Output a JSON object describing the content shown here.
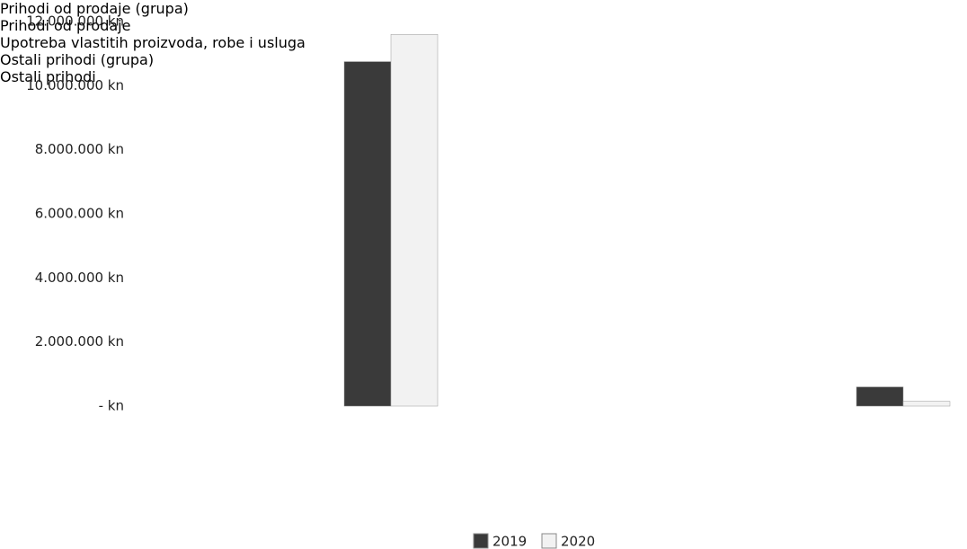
{
  "chart_data": {
    "type": "bar",
    "categories": [
      "Prihodi od prodaje (grupa)",
      "Prihodi od prodaje",
      "Upotreba vlastitih proizvoda, robe i usluga",
      "Ostali prihodi (grupa)",
      "Ostali prihodi"
    ],
    "series": [
      {
        "name": "2019",
        "color": "#3a3a3a",
        "values": [
          null,
          10750000,
          null,
          null,
          600000
        ]
      },
      {
        "name": "2020",
        "color": "#f2f2f2",
        "values": [
          null,
          11600000,
          null,
          null,
          150000
        ]
      }
    ],
    "ylim": [
      0,
      12000000
    ],
    "yticks": [
      {
        "value": 0,
        "label": "- kn"
      },
      {
        "value": 2000000,
        "label": "2.000.000 kn"
      },
      {
        "value": 4000000,
        "label": "4.000.000 kn"
      },
      {
        "value": 6000000,
        "label": "6.000.000 kn"
      },
      {
        "value": 8000000,
        "label": "8.000.000 kn"
      },
      {
        "value": 10000000,
        "label": "10.000.000 kn"
      },
      {
        "value": 12000000,
        "label": "12.000.000 kn"
      }
    ],
    "grid": false,
    "legend": "bottom"
  }
}
